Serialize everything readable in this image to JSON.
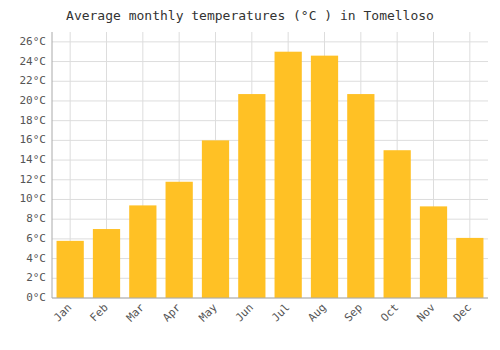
{
  "chart_data": {
    "type": "bar",
    "title": "Average monthly temperatures (°C ) in Tomelloso",
    "categories": [
      "Jan",
      "Feb",
      "Mar",
      "Apr",
      "May",
      "Jun",
      "Jul",
      "Aug",
      "Sep",
      "Oct",
      "Nov",
      "Dec"
    ],
    "values": [
      5.8,
      7.0,
      9.4,
      11.8,
      16.0,
      20.7,
      25.0,
      24.6,
      20.7,
      15.0,
      9.3,
      6.1
    ],
    "color": "#FFC125",
    "ylim": [
      0,
      27
    ],
    "yticks": [
      {
        "value": 0,
        "label": "0°C"
      },
      {
        "value": 2,
        "label": "2°C"
      },
      {
        "value": 4,
        "label": "4°C"
      },
      {
        "value": 6,
        "label": "6°C"
      },
      {
        "value": 8,
        "label": "8°C"
      },
      {
        "value": 10,
        "label": "10°C"
      },
      {
        "value": 12,
        "label": "12°C"
      },
      {
        "value": 14,
        "label": "14°C"
      },
      {
        "value": 16,
        "label": "16°C"
      },
      {
        "value": 18,
        "label": "18°C"
      },
      {
        "value": 20,
        "label": "20°C"
      },
      {
        "value": 22,
        "label": "22°C"
      },
      {
        "value": 24,
        "label": "24°C"
      },
      {
        "value": 26,
        "label": "26°C"
      }
    ],
    "grid": true
  }
}
